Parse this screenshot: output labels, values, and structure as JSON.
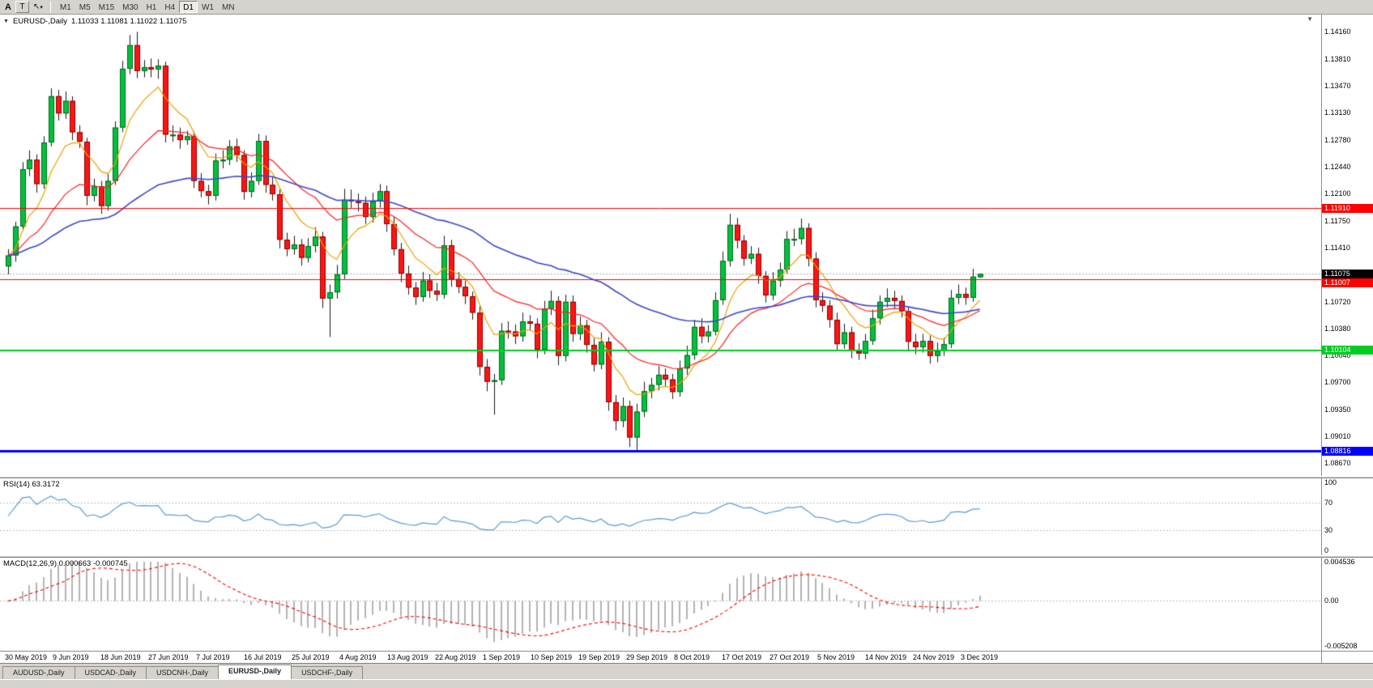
{
  "toolbar": {
    "a_label": "A",
    "t_label": "T",
    "cursor_tool": "cursor-select",
    "timeframes": [
      "M1",
      "M5",
      "M15",
      "M30",
      "H1",
      "H4",
      "D1",
      "W1",
      "MN"
    ],
    "active_timeframe": "D1"
  },
  "chart_data": {
    "type": "candlestick",
    "title": "EURUSD-,Daily",
    "ohlc_display": "1.11033 1.11081 1.11022 1.11075",
    "current_price": "1.11075",
    "ylim": [
      1.085,
      1.1438
    ],
    "price_axis_labels": [
      "1.14160",
      "1.13810",
      "1.13470",
      "1.13130",
      "1.12780",
      "1.12440",
      "1.12100",
      "1.11750",
      "1.11410",
      "1.10720",
      "1.10380",
      "1.10040",
      "1.09700",
      "1.09350",
      "1.09010",
      "1.08670"
    ],
    "x_labels": [
      "30 May 2019",
      "9 Jun 2019",
      "18 Jun 2019",
      "27 Jun 2019",
      "7 Jul 2019",
      "16 Jul 2019",
      "25 Jul 2019",
      "4 Aug 2019",
      "13 Aug 2019",
      "22 Aug 2019",
      "1 Sep 2019",
      "10 Sep 2019",
      "19 Sep 2019",
      "29 Sep 2019",
      "8 Oct 2019",
      "17 Oct 2019",
      "27 Oct 2019",
      "5 Nov 2019",
      "14 Nov 2019",
      "24 Nov 2019",
      "3 Dec 2019"
    ],
    "levels": [
      {
        "price": "1.11910",
        "color": "#ff0000",
        "width": 1
      },
      {
        "price": "1.11007",
        "color": "#ff0000",
        "width": 1
      },
      {
        "price": "1.10104",
        "color": "#00cc22",
        "width": 2
      },
      {
        "price": "1.08816",
        "color": "#0000ff",
        "width": 3
      }
    ],
    "moving_averages": [
      {
        "period": 8,
        "color": "#efa000"
      },
      {
        "period": 21,
        "color": "#ff2020"
      },
      {
        "period": 55,
        "color": "#3a49c8"
      }
    ],
    "colors": {
      "background": "#ffffff",
      "bull": "#00c13c",
      "bear": "#ff1414",
      "bull_border": "#006a1e",
      "bear_border": "#8e0000",
      "wick": "#1a1a1a",
      "current_line": "#aaaaaa"
    },
    "candles": [
      [
        1.1117,
        1.1139,
        1.1107,
        1.1131
      ],
      [
        1.1131,
        1.1174,
        1.1123,
        1.1168
      ],
      [
        1.1168,
        1.125,
        1.1163,
        1.1241
      ],
      [
        1.1241,
        1.1265,
        1.1232,
        1.1253
      ],
      [
        1.1253,
        1.126,
        1.1211,
        1.1222
      ],
      [
        1.1222,
        1.1283,
        1.1216,
        1.1275
      ],
      [
        1.1275,
        1.1344,
        1.127,
        1.1334
      ],
      [
        1.1334,
        1.1342,
        1.1303,
        1.1312
      ],
      [
        1.1312,
        1.134,
        1.1305,
        1.1328
      ],
      [
        1.1328,
        1.1334,
        1.1278,
        1.1288
      ],
      [
        1.1288,
        1.1297,
        1.1268,
        1.1276
      ],
      [
        1.1276,
        1.1281,
        1.1195,
        1.1207
      ],
      [
        1.1207,
        1.1229,
        1.12,
        1.1219
      ],
      [
        1.1219,
        1.1226,
        1.1184,
        1.1194
      ],
      [
        1.1194,
        1.1235,
        1.1188,
        1.1226
      ],
      [
        1.1226,
        1.1302,
        1.1221,
        1.1294
      ],
      [
        1.1294,
        1.1379,
        1.1288,
        1.1369
      ],
      [
        1.1369,
        1.1412,
        1.1362,
        1.1399
      ],
      [
        1.1399,
        1.1416,
        1.1357,
        1.1366
      ],
      [
        1.1366,
        1.138,
        1.1358,
        1.1371
      ],
      [
        1.1371,
        1.1382,
        1.1358,
        1.1368
      ],
      [
        1.1368,
        1.1381,
        1.1356,
        1.1373
      ],
      [
        1.1373,
        1.1378,
        1.1275,
        1.1285
      ],
      [
        1.1285,
        1.1297,
        1.1276,
        1.1285
      ],
      [
        1.1285,
        1.1294,
        1.1267,
        1.1278
      ],
      [
        1.1278,
        1.129,
        1.1272,
        1.1283
      ],
      [
        1.1283,
        1.1289,
        1.1217,
        1.1226
      ],
      [
        1.1226,
        1.1236,
        1.1205,
        1.1213
      ],
      [
        1.1213,
        1.1221,
        1.1196,
        1.1207
      ],
      [
        1.1207,
        1.1261,
        1.1201,
        1.1252
      ],
      [
        1.1252,
        1.1265,
        1.1242,
        1.1253
      ],
      [
        1.1253,
        1.1278,
        1.1246,
        1.127
      ],
      [
        1.127,
        1.128,
        1.125,
        1.1259
      ],
      [
        1.1259,
        1.1265,
        1.1202,
        1.1212
      ],
      [
        1.1212,
        1.1237,
        1.1205,
        1.1226
      ],
      [
        1.1226,
        1.1286,
        1.1221,
        1.1277
      ],
      [
        1.1277,
        1.1284,
        1.1211,
        1.1221
      ],
      [
        1.1221,
        1.1231,
        1.1201,
        1.1209
      ],
      [
        1.1209,
        1.1215,
        1.114,
        1.1151
      ],
      [
        1.1151,
        1.116,
        1.113,
        1.1139
      ],
      [
        1.1139,
        1.1156,
        1.1132,
        1.1145
      ],
      [
        1.1145,
        1.1152,
        1.1118,
        1.1128
      ],
      [
        1.1128,
        1.1153,
        1.1122,
        1.1143
      ],
      [
        1.1143,
        1.1167,
        1.1135,
        1.1155
      ],
      [
        1.1155,
        1.1161,
        1.1064,
        1.1076
      ],
      [
        1.1076,
        1.1094,
        1.1027,
        1.1084
      ],
      [
        1.1084,
        1.1119,
        1.1076,
        1.1107
      ],
      [
        1.1107,
        1.1216,
        1.1101,
        1.1202
      ],
      [
        1.1202,
        1.1215,
        1.1191,
        1.12
      ],
      [
        1.12,
        1.121,
        1.1187,
        1.1198
      ],
      [
        1.1198,
        1.1206,
        1.1171,
        1.118
      ],
      [
        1.118,
        1.1211,
        1.1173,
        1.12
      ],
      [
        1.12,
        1.1222,
        1.1192,
        1.1213
      ],
      [
        1.1213,
        1.122,
        1.1161,
        1.1171
      ],
      [
        1.1171,
        1.118,
        1.1131,
        1.1139
      ],
      [
        1.1139,
        1.1147,
        1.1097,
        1.1108
      ],
      [
        1.1108,
        1.1118,
        1.1081,
        1.109
      ],
      [
        1.109,
        1.1097,
        1.1068,
        1.1078
      ],
      [
        1.1078,
        1.111,
        1.1072,
        1.1099
      ],
      [
        1.1099,
        1.1107,
        1.1077,
        1.1086
      ],
      [
        1.1086,
        1.1096,
        1.1073,
        1.1081
      ],
      [
        1.1081,
        1.1156,
        1.1076,
        1.1144
      ],
      [
        1.1144,
        1.1151,
        1.1091,
        1.1101
      ],
      [
        1.1101,
        1.111,
        1.1083,
        1.1091
      ],
      [
        1.1091,
        1.1099,
        1.1069,
        1.1079
      ],
      [
        1.1079,
        1.1085,
        1.1049,
        1.1058
      ],
      [
        1.1058,
        1.1066,
        1.0978,
        1.0989
      ],
      [
        1.0989,
        1.0999,
        1.0958,
        1.097
      ],
      [
        1.097,
        1.098,
        1.0928,
        1.0972
      ],
      [
        1.0972,
        1.1045,
        1.0966,
        1.1035
      ],
      [
        1.1035,
        1.1047,
        1.1025,
        1.1034
      ],
      [
        1.1034,
        1.1043,
        1.1018,
        1.1028
      ],
      [
        1.1028,
        1.1058,
        1.1021,
        1.1047
      ],
      [
        1.1047,
        1.1055,
        1.1035,
        1.1044
      ],
      [
        1.1044,
        1.1051,
        1.1,
        1.1011
      ],
      [
        1.1011,
        1.1073,
        1.1005,
        1.1063
      ],
      [
        1.1063,
        1.1086,
        1.1055,
        1.1073
      ],
      [
        1.1073,
        1.1079,
        1.0991,
        1.1003
      ],
      [
        1.1003,
        1.1081,
        1.0996,
        1.1072
      ],
      [
        1.1072,
        1.108,
        1.1021,
        1.1031
      ],
      [
        1.1031,
        1.1053,
        1.1023,
        1.1042
      ],
      [
        1.1042,
        1.1049,
        1.1007,
        1.1017
      ],
      [
        1.1017,
        1.1026,
        1.0983,
        1.0992
      ],
      [
        1.0992,
        1.1033,
        1.0986,
        1.1021
      ],
      [
        1.1021,
        1.1027,
        1.0933,
        1.0944
      ],
      [
        1.0944,
        1.0953,
        1.0908,
        1.092
      ],
      [
        1.092,
        1.095,
        1.0912,
        1.0939
      ],
      [
        1.0939,
        1.0946,
        1.0887,
        1.0899
      ],
      [
        1.0899,
        1.0942,
        1.0882,
        1.0932
      ],
      [
        1.0932,
        1.097,
        1.0925,
        1.0958
      ],
      [
        1.0958,
        1.0975,
        1.0949,
        1.0966
      ],
      [
        1.0966,
        1.099,
        1.0959,
        1.0979
      ],
      [
        1.0979,
        1.0987,
        1.0963,
        1.0973
      ],
      [
        1.0973,
        1.098,
        1.0948,
        1.0957
      ],
      [
        1.0957,
        1.0997,
        1.0951,
        1.0987
      ],
      [
        1.0987,
        1.1016,
        1.0979,
        1.1004
      ],
      [
        1.1004,
        1.1049,
        1.0998,
        1.104
      ],
      [
        1.104,
        1.1051,
        1.1019,
        1.1028
      ],
      [
        1.1028,
        1.1042,
        1.102,
        1.1034
      ],
      [
        1.1034,
        1.1084,
        1.1029,
        1.1074
      ],
      [
        1.1074,
        1.1136,
        1.1068,
        1.1124
      ],
      [
        1.1124,
        1.1184,
        1.1117,
        1.117
      ],
      [
        1.117,
        1.1179,
        1.114,
        1.115
      ],
      [
        1.115,
        1.1157,
        1.1118,
        1.1127
      ],
      [
        1.1127,
        1.1143,
        1.112,
        1.1133
      ],
      [
        1.1133,
        1.1141,
        1.1095,
        1.1105
      ],
      [
        1.1105,
        1.1111,
        1.1071,
        1.108
      ],
      [
        1.108,
        1.111,
        1.1074,
        1.1099
      ],
      [
        1.1099,
        1.1122,
        1.1091,
        1.1113
      ],
      [
        1.1113,
        1.1162,
        1.1108,
        1.1152
      ],
      [
        1.1152,
        1.1165,
        1.1143,
        1.1152
      ],
      [
        1.1152,
        1.1178,
        1.1145,
        1.1166
      ],
      [
        1.1166,
        1.1172,
        1.1117,
        1.1127
      ],
      [
        1.1127,
        1.1135,
        1.1065,
        1.1074
      ],
      [
        1.1074,
        1.1084,
        1.1059,
        1.1067
      ],
      [
        1.1067,
        1.1074,
        1.1039,
        1.1049
      ],
      [
        1.1049,
        1.1058,
        1.101,
        1.1018
      ],
      [
        1.1018,
        1.1044,
        1.1012,
        1.1033
      ],
      [
        1.1033,
        1.104,
        1.1,
        1.1009
      ],
      [
        1.1009,
        1.1019,
        1.0998,
        1.1006
      ],
      [
        1.1006,
        1.1031,
        1.0999,
        1.1022
      ],
      [
        1.1022,
        1.1062,
        1.1017,
        1.1051
      ],
      [
        1.1051,
        1.108,
        1.1043,
        1.1072
      ],
      [
        1.1072,
        1.1089,
        1.1065,
        1.1077
      ],
      [
        1.1077,
        1.1086,
        1.1064,
        1.1073
      ],
      [
        1.1073,
        1.108,
        1.1052,
        1.106
      ],
      [
        1.106,
        1.1066,
        1.1011,
        1.1021
      ],
      [
        1.1021,
        1.1031,
        1.1005,
        1.1014
      ],
      [
        1.1014,
        1.1031,
        1.1007,
        1.1022
      ],
      [
        1.1022,
        1.1029,
        1.0993,
        1.1003
      ],
      [
        1.1003,
        1.102,
        1.0995,
        1.1009
      ],
      [
        1.1009,
        1.1026,
        1.1003,
        1.1018
      ],
      [
        1.1018,
        1.1087,
        1.1013,
        1.1077
      ],
      [
        1.1077,
        1.1094,
        1.1069,
        1.1082
      ],
      [
        1.1082,
        1.109,
        1.1068,
        1.1077
      ],
      [
        1.1077,
        1.1114,
        1.1072,
        1.1104
      ],
      [
        1.11033,
        1.11081,
        1.11022,
        1.11075
      ]
    ],
    "rsi": {
      "label": "RSI(14) 63.3172",
      "period": 14,
      "current": 63.3172,
      "guide_levels": [
        70,
        30
      ],
      "axis_labels": [
        "100",
        "70",
        "30",
        "0"
      ],
      "line_color": "#5b9bd5"
    },
    "macd": {
      "label": "MACD(12,26,9) 0.000663 -0.000745",
      "fast": 12,
      "slow": 26,
      "signal": 9,
      "macd_value": "0.000663",
      "signal_value": "-0.000745",
      "scale_max": 0.004536,
      "scale_min": -0.005208,
      "axis_labels": [
        "0.004536",
        "0.00",
        "-0.005208"
      ],
      "histogram_color": "#b4b4b4",
      "signal_color": "#ff0000"
    }
  },
  "tabs": {
    "items": [
      "AUDUSD-,Daily",
      "USDCAD-,Daily",
      "USDCNH-,Daily",
      "EURUSD-,Daily",
      "USDCHF-,Daily"
    ],
    "active": "EURUSD-,Daily"
  }
}
